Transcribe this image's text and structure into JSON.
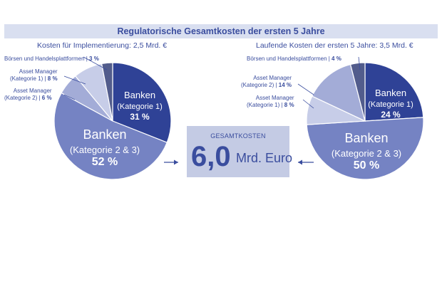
{
  "title": "Regulatorische Gesamtkosten der ersten 5 Jahre",
  "center": {
    "label": "GESAMTKOSTEN",
    "value": "6,0",
    "unit": "Mrd. Euro"
  },
  "colors": {
    "title_bar": "#d9dff0",
    "text": "#3a4d9e",
    "banken_k1": "#2f4296",
    "banken_k23": "#7583c3",
    "asset_k2": "#a3acd7",
    "asset_k1": "#c7cde8",
    "boersen": "#525c8c",
    "center_box": "#c4cbe4"
  },
  "chart_data": [
    {
      "type": "pie",
      "title": "Kosten für Implementierung: 2,5 Mrd. €",
      "slices": [
        {
          "key": "banken_k1",
          "name_line1": "Banken",
          "name_line2": "(Kategorie 1)",
          "name": "Banken (Kategorie 1)",
          "value": 31,
          "label": "31 %"
        },
        {
          "key": "banken_k23",
          "name_line1": "Banken",
          "name_line2": "(Kategorie 2 & 3)",
          "name": "Banken (Kategorie 2 & 3)",
          "value": 52,
          "label": "52 %"
        },
        {
          "key": "asset_k2",
          "name": "Asset Manager (Kategorie 2)",
          "name_line1": "Asset Manager",
          "name_line2": "(Kategorie 2)",
          "value": 6,
          "label": "6 %"
        },
        {
          "key": "asset_k1",
          "name": "Asset Manager (Kategorie 1)",
          "name_line1": "Asset Manager",
          "name_line2": "(Kategorie 1)",
          "value": 8,
          "label": "8 %"
        },
        {
          "key": "boersen",
          "name": "Börsen und Handelsplattformen",
          "value": 3,
          "label": "3 %"
        }
      ]
    },
    {
      "type": "pie",
      "title": "Laufende Kosten der ersten 5 Jahre: 3,5 Mrd. €",
      "slices": [
        {
          "key": "banken_k1",
          "name_line1": "Banken",
          "name_line2": "(Kategorie 1)",
          "name": "Banken (Kategorie 1)",
          "value": 24,
          "label": "24 %"
        },
        {
          "key": "banken_k23",
          "name_line1": "Banken",
          "name_line2": "(Kategorie 2 & 3)",
          "name": "Banken (Kategorie 2 & 3)",
          "value": 50,
          "label": "50 %"
        },
        {
          "key": "asset_k1",
          "name": "Asset Manager (Kategorie 1)",
          "name_line1": "Asset Manager",
          "name_line2": "(Kategorie 1)",
          "value": 8,
          "label": "8 %"
        },
        {
          "key": "asset_k2",
          "name": "Asset Manager (Kategorie 2)",
          "name_line1": "Asset Manager",
          "name_line2": "(Kategorie 2)",
          "value": 14,
          "label": "14 %"
        },
        {
          "key": "boersen",
          "name": "Börsen und Handelsplattformen",
          "value": 4,
          "label": "4 %"
        }
      ]
    }
  ]
}
